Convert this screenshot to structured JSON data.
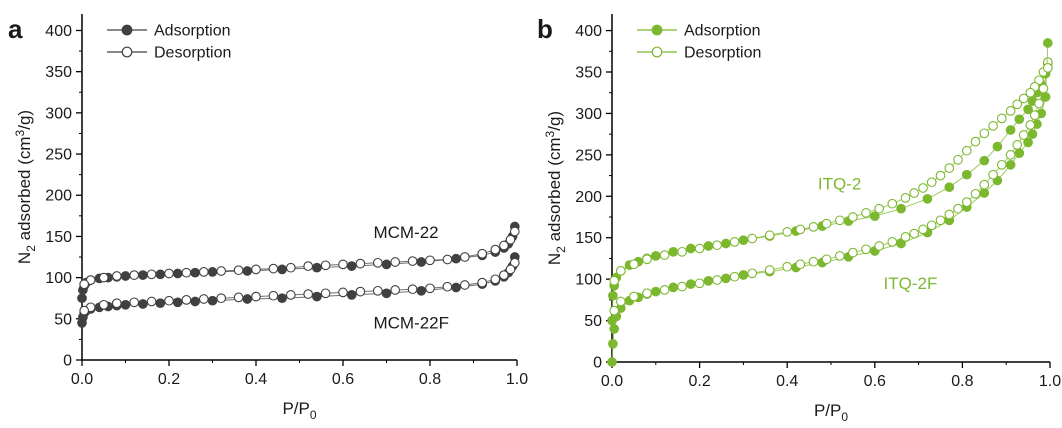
{
  "chart_data": [
    {
      "panel": "a",
      "type": "scatter",
      "xlabel": "P/P",
      "xlabel_sub": "0",
      "ylabel_parts": [
        "N",
        "2",
        " adsorbed (cm",
        "3",
        "/g)"
      ],
      "xlim": [
        0.0,
        1.0
      ],
      "ylim": [
        0,
        420
      ],
      "xticks": [
        "0.0",
        "0.2",
        "0.4",
        "0.6",
        "0.8",
        "1.0"
      ],
      "yticks": [
        "0",
        "50",
        "100",
        "150",
        "200",
        "250",
        "300",
        "350",
        "400"
      ],
      "grid": false,
      "legend_position": "top-left",
      "color": "#404040",
      "legend": [
        {
          "label": "Adsorption",
          "marker": "filled"
        },
        {
          "label": "Desorption",
          "marker": "open"
        }
      ],
      "annotations": [
        {
          "text": "MCM-22",
          "x": 0.67,
          "y": 148
        },
        {
          "text": "MCM-22F",
          "x": 0.67,
          "y": 38
        }
      ],
      "series": [
        {
          "name": "Adsorption",
          "sample": "MCM-22",
          "marker": "filled",
          "x": [
            0.0,
            0.002,
            0.005,
            0.01,
            0.02,
            0.04,
            0.06,
            0.08,
            0.1,
            0.14,
            0.18,
            0.22,
            0.26,
            0.3,
            0.38,
            0.46,
            0.54,
            0.62,
            0.7,
            0.78,
            0.86,
            0.92,
            0.95,
            0.97,
            0.98,
            0.99,
            0.995
          ],
          "y": [
            75,
            85,
            90,
            94,
            97,
            99,
            100,
            101,
            102,
            103,
            104,
            105,
            106,
            107,
            108,
            110,
            112,
            114,
            116,
            119,
            123,
            127,
            131,
            136,
            141,
            150,
            162
          ]
        },
        {
          "name": "Desorption",
          "sample": "MCM-22",
          "marker": "open",
          "x": [
            0.995,
            0.985,
            0.97,
            0.95,
            0.92,
            0.88,
            0.84,
            0.8,
            0.76,
            0.72,
            0.68,
            0.64,
            0.6,
            0.56,
            0.52,
            0.48,
            0.44,
            0.4,
            0.36,
            0.32,
            0.28,
            0.24,
            0.2,
            0.16,
            0.12,
            0.08,
            0.05,
            0.02,
            0.005
          ],
          "y": [
            156,
            146,
            139,
            134,
            129,
            125,
            122,
            121,
            120,
            119,
            118,
            117,
            116,
            115,
            114,
            112,
            111,
            110,
            109,
            108,
            107,
            106,
            105,
            104,
            103,
            102,
            100,
            97,
            92
          ]
        },
        {
          "name": "Adsorption",
          "sample": "MCM-22F",
          "marker": "filled",
          "x": [
            0.0,
            0.002,
            0.005,
            0.01,
            0.02,
            0.04,
            0.06,
            0.08,
            0.1,
            0.14,
            0.18,
            0.22,
            0.26,
            0.3,
            0.38,
            0.46,
            0.54,
            0.62,
            0.7,
            0.78,
            0.86,
            0.92,
            0.95,
            0.97,
            0.98,
            0.99,
            0.995
          ],
          "y": [
            45,
            52,
            57,
            60,
            62,
            64,
            65,
            66,
            67,
            68,
            69,
            70,
            71,
            72,
            74,
            75,
            77,
            79,
            81,
            84,
            88,
            92,
            96,
            101,
            106,
            114,
            125
          ]
        },
        {
          "name": "Desorption",
          "sample": "MCM-22F",
          "marker": "open",
          "x": [
            0.995,
            0.985,
            0.97,
            0.95,
            0.92,
            0.88,
            0.84,
            0.8,
            0.76,
            0.72,
            0.68,
            0.64,
            0.6,
            0.56,
            0.52,
            0.48,
            0.44,
            0.4,
            0.36,
            0.32,
            0.28,
            0.24,
            0.2,
            0.16,
            0.12,
            0.08,
            0.05,
            0.02,
            0.005
          ],
          "y": [
            118,
            110,
            103,
            98,
            94,
            91,
            89,
            87,
            86,
            85,
            84,
            83,
            82,
            81,
            80,
            79,
            78,
            77,
            76,
            75,
            74,
            73,
            72,
            71,
            70,
            69,
            67,
            64,
            60
          ]
        }
      ]
    },
    {
      "panel": "b",
      "type": "scatter",
      "xlabel": "P/P",
      "xlabel_sub": "0",
      "ylabel_parts": [
        "N",
        "2",
        " adsorbed (cm",
        "3",
        "/g)"
      ],
      "xlim": [
        0.0,
        1.0
      ],
      "ylim": [
        0,
        420
      ],
      "xticks": [
        "0.0",
        "0.2",
        "0.4",
        "0.6",
        "0.8",
        "1.0"
      ],
      "yticks": [
        "0",
        "50",
        "100",
        "150",
        "200",
        "250",
        "300",
        "350",
        "400"
      ],
      "grid": false,
      "legend_position": "top-left",
      "color": "#7cb82f",
      "legend": [
        {
          "label": "Adsorption",
          "marker": "filled"
        },
        {
          "label": "Desorption",
          "marker": "open"
        }
      ],
      "annotations": [
        {
          "text": "ITQ-2",
          "x": 0.47,
          "y": 208
        },
        {
          "text": "ITQ-2F",
          "x": 0.62,
          "y": 88
        }
      ],
      "series": [
        {
          "name": "Adsorption",
          "sample": "ITQ-2",
          "marker": "filled",
          "x": [
            0.0,
            0.002,
            0.005,
            0.01,
            0.02,
            0.04,
            0.06,
            0.08,
            0.1,
            0.14,
            0.18,
            0.22,
            0.26,
            0.3,
            0.36,
            0.42,
            0.48,
            0.54,
            0.6,
            0.66,
            0.72,
            0.77,
            0.81,
            0.85,
            0.88,
            0.91,
            0.93,
            0.95,
            0.96,
            0.97,
            0.98,
            0.99,
            0.995
          ],
          "y": [
            50,
            80,
            92,
            102,
            110,
            117,
            121,
            125,
            128,
            133,
            137,
            140,
            143,
            147,
            152,
            158,
            164,
            170,
            176,
            185,
            197,
            211,
            226,
            243,
            260,
            280,
            293,
            305,
            315,
            325,
            335,
            348,
            360
          ]
        },
        {
          "name": "Desorption",
          "sample": "ITQ-2",
          "marker": "open",
          "x": [
            0.995,
            0.985,
            0.975,
            0.965,
            0.955,
            0.94,
            0.925,
            0.91,
            0.89,
            0.87,
            0.85,
            0.83,
            0.81,
            0.79,
            0.77,
            0.75,
            0.73,
            0.71,
            0.69,
            0.67,
            0.64,
            0.61,
            0.58,
            0.55,
            0.52,
            0.49,
            0.46,
            0.43,
            0.4,
            0.36,
            0.32,
            0.28,
            0.24,
            0.2,
            0.16,
            0.12,
            0.08,
            0.05,
            0.02,
            0.005
          ],
          "y": [
            362,
            350,
            340,
            332,
            325,
            318,
            311,
            303,
            294,
            285,
            276,
            266,
            255,
            244,
            234,
            225,
            217,
            210,
            204,
            198,
            191,
            185,
            180,
            175,
            171,
            167,
            163,
            160,
            157,
            153,
            149,
            145,
            141,
            137,
            133,
            129,
            124,
            118,
            110,
            98
          ]
        },
        {
          "name": "Adsorption",
          "sample": "ITQ-2F",
          "marker": "filled",
          "x": [
            0.0,
            0.002,
            0.005,
            0.01,
            0.02,
            0.04,
            0.06,
            0.08,
            0.1,
            0.14,
            0.18,
            0.22,
            0.26,
            0.3,
            0.36,
            0.42,
            0.48,
            0.54,
            0.6,
            0.66,
            0.72,
            0.77,
            0.81,
            0.85,
            0.88,
            0.91,
            0.93,
            0.95,
            0.96,
            0.97,
            0.98,
            0.99,
            0.995
          ],
          "y": [
            0,
            22,
            40,
            55,
            65,
            74,
            78,
            82,
            85,
            90,
            94,
            98,
            101,
            105,
            109,
            114,
            120,
            127,
            134,
            143,
            156,
            171,
            187,
            204,
            219,
            238,
            252,
            265,
            275,
            287,
            300,
            320,
            385
          ]
        },
        {
          "name": "Desorption",
          "sample": "ITQ-2F",
          "marker": "open",
          "x": [
            0.995,
            0.985,
            0.975,
            0.965,
            0.955,
            0.94,
            0.925,
            0.91,
            0.89,
            0.87,
            0.85,
            0.83,
            0.81,
            0.79,
            0.77,
            0.75,
            0.73,
            0.71,
            0.69,
            0.67,
            0.64,
            0.61,
            0.58,
            0.55,
            0.52,
            0.49,
            0.46,
            0.43,
            0.4,
            0.36,
            0.32,
            0.28,
            0.24,
            0.2,
            0.16,
            0.12,
            0.08,
            0.05,
            0.02,
            0.005
          ],
          "y": [
            355,
            330,
            312,
            298,
            286,
            274,
            262,
            250,
            238,
            226,
            214,
            203,
            193,
            185,
            178,
            171,
            165,
            160,
            155,
            151,
            145,
            140,
            136,
            132,
            128,
            124,
            121,
            118,
            115,
            111,
            107,
            103,
            99,
            95,
            91,
            87,
            83,
            79,
            73,
            62
          ]
        }
      ]
    }
  ]
}
